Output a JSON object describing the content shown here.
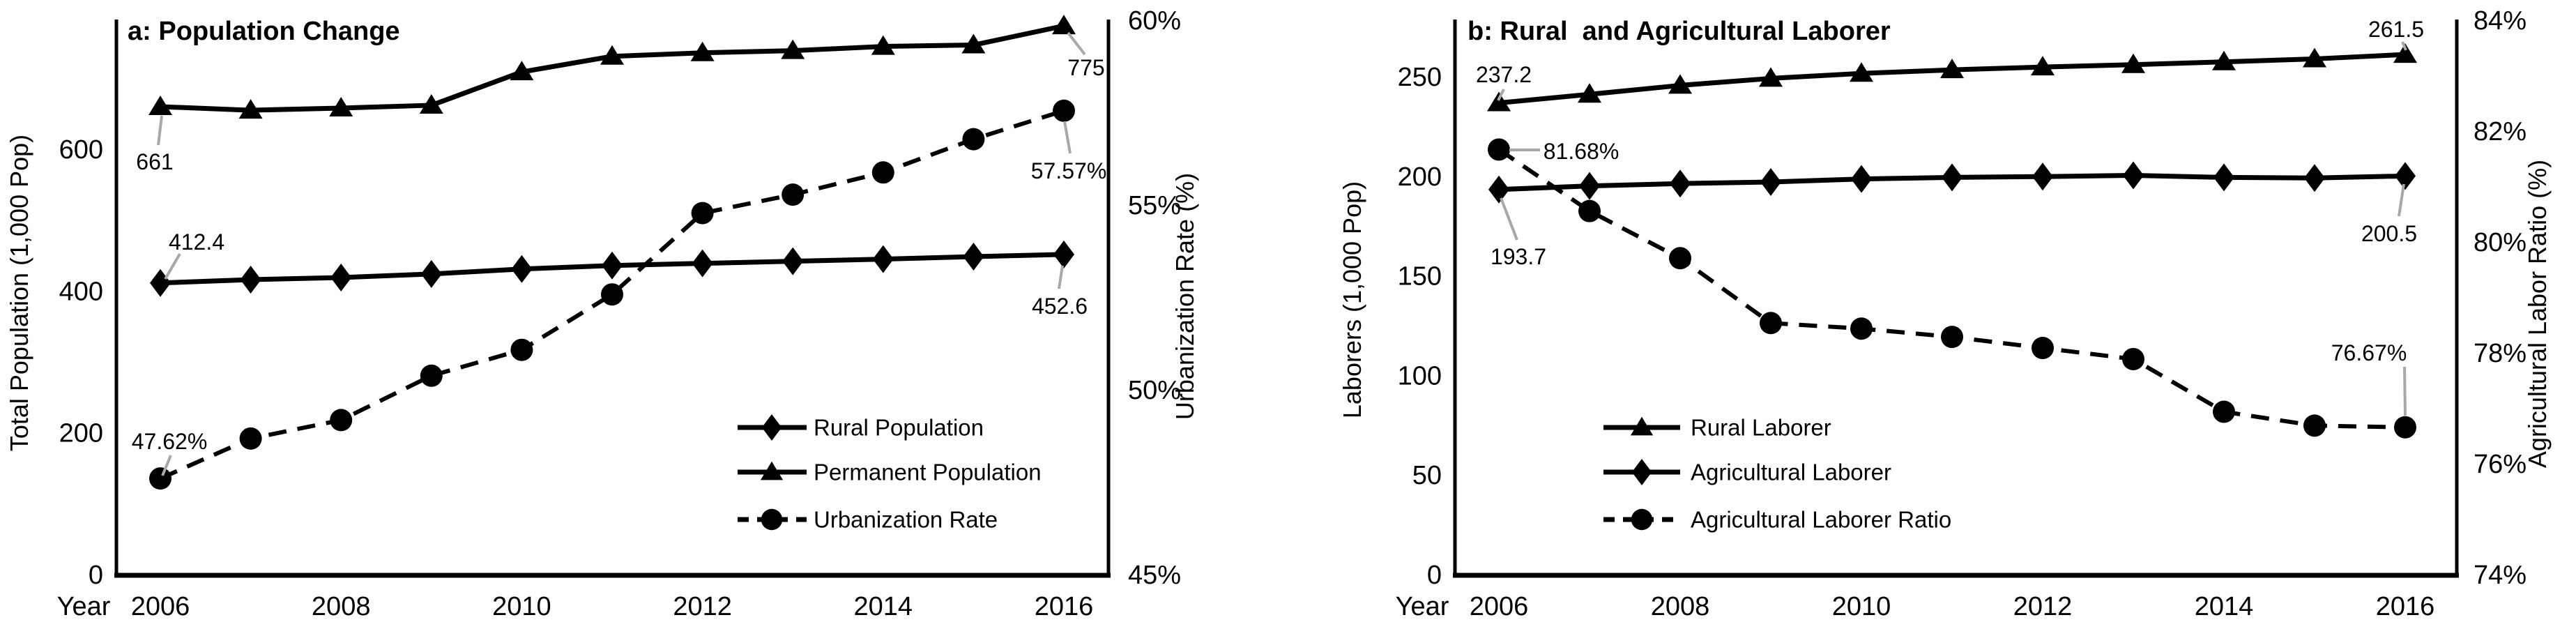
{
  "page": {
    "background": "#ffffff"
  },
  "colors": {
    "series": "#000000",
    "leader": "#a8a8a8",
    "text": "#000000"
  },
  "chart_data": [
    {
      "type": "line",
      "panel": "a",
      "title": "a: Population Change",
      "xlabel": "Year",
      "grid": false,
      "legend_position": "inside-lower-right",
      "x": [
        2006,
        2007,
        2008,
        2009,
        2010,
        2011,
        2012,
        2013,
        2014,
        2015,
        2016
      ],
      "x_tick_labels": [
        "2006",
        "2008",
        "2010",
        "2012",
        "2014",
        "2016"
      ],
      "x_tick_values": [
        2006,
        2008,
        2010,
        2012,
        2014,
        2016
      ],
      "left_axis": {
        "label": "Total Population (1,000 Pop)",
        "tick_labels": [
          "0",
          "200",
          "400",
          "600"
        ],
        "tick_values": [
          0,
          200,
          400,
          600
        ],
        "range": [
          0,
          780
        ]
      },
      "right_axis": {
        "label": "Urbanization Rate (%)",
        "tick_labels": [
          "45%",
          "50%",
          "55%",
          "60%"
        ],
        "tick_values": [
          45,
          50,
          55,
          60
        ],
        "range": [
          45,
          60
        ]
      },
      "series": [
        {
          "name": "Rural Population",
          "axis": "left",
          "marker": "diamond",
          "line": "solid",
          "values": [
            412.4,
            417,
            420,
            425,
            432,
            437,
            440,
            443,
            446,
            449.5,
            452.6
          ]
        },
        {
          "name": "Permanent Population",
          "axis": "left",
          "marker": "triangle",
          "line": "solid",
          "values": [
            661,
            656,
            659,
            663,
            710,
            732,
            737,
            740,
            746,
            748,
            775
          ]
        },
        {
          "name": "Urbanization Rate",
          "axis": "right",
          "marker": "circle",
          "line": "dashed",
          "values": [
            47.62,
            48.7,
            49.2,
            50.4,
            51.1,
            52.6,
            54.8,
            55.3,
            55.9,
            56.8,
            57.57
          ]
        }
      ],
      "legend_entries": [
        "Rural Population",
        "Permanent Population",
        "Urbanization Rate"
      ],
      "point_labels": [
        {
          "text": "661",
          "series": "Permanent Population",
          "year": 2006
        },
        {
          "text": "412.4",
          "series": "Rural Population",
          "year": 2006
        },
        {
          "text": "47.62%",
          "series": "Urbanization Rate",
          "year": 2006
        },
        {
          "text": "775",
          "series": "Permanent Population",
          "year": 2016
        },
        {
          "text": "452.6",
          "series": "Rural Population",
          "year": 2016
        },
        {
          "text": "57.57%",
          "series": "Urbanization Rate",
          "year": 2016
        }
      ]
    },
    {
      "type": "line",
      "panel": "b",
      "title": "b: Rural  and Agricultural Laborer",
      "xlabel": "Year",
      "grid": false,
      "legend_position": "inside-lower-left",
      "x": [
        2006,
        2007,
        2008,
        2009,
        2010,
        2011,
        2012,
        2013,
        2014,
        2015,
        2016
      ],
      "x_tick_labels": [
        "2006",
        "2008",
        "2010",
        "2012",
        "2014",
        "2016"
      ],
      "x_tick_values": [
        2006,
        2008,
        2010,
        2012,
        2014,
        2016
      ],
      "left_axis": {
        "label": "Laborers (1,000 Pop)",
        "tick_labels": [
          "0",
          "50",
          "100",
          "150",
          "200",
          "250"
        ],
        "tick_values": [
          0,
          50,
          100,
          150,
          200,
          250
        ],
        "range": [
          0,
          278
        ]
      },
      "right_axis": {
        "label": "Agricultural Labor Ratio (%)",
        "tick_labels": [
          "74%",
          "76%",
          "78%",
          "80%",
          "82%",
          "84%"
        ],
        "tick_values": [
          74,
          76,
          78,
          80,
          82,
          84
        ],
        "range": [
          74,
          84
        ]
      },
      "series": [
        {
          "name": "Rural Laborer",
          "axis": "left",
          "marker": "triangle",
          "line": "solid",
          "values": [
            237.2,
            241.5,
            246,
            249.5,
            252,
            253.8,
            255.2,
            256.4,
            257.8,
            259.3,
            261.5
          ]
        },
        {
          "name": "Agricultural Laborer",
          "axis": "left",
          "marker": "diamond",
          "line": "solid",
          "values": [
            193.7,
            195.5,
            196.7,
            197.5,
            199,
            199.8,
            200.2,
            200.8,
            199.8,
            199.5,
            200.5
          ]
        },
        {
          "name": "Agricultural Laborer Ratio",
          "axis": "right",
          "marker": "circle",
          "line": "dashed",
          "values": [
            81.68,
            80.57,
            79.72,
            78.55,
            78.45,
            78.3,
            78.1,
            77.9,
            76.95,
            76.7,
            76.67
          ]
        }
      ],
      "legend_entries": [
        "Rural Laborer",
        "Agricultural Laborer",
        "Agricultural Laborer Ratio"
      ],
      "point_labels": [
        {
          "text": "237.2",
          "series": "Rural Laborer",
          "year": 2006
        },
        {
          "text": "193.7",
          "series": "Agricultural Laborer",
          "year": 2006
        },
        {
          "text": "81.68%",
          "series": "Agricultural Laborer Ratio",
          "year": 2006
        },
        {
          "text": "261.5",
          "series": "Rural Laborer",
          "year": 2016
        },
        {
          "text": "200.5",
          "series": "Agricultural Laborer",
          "year": 2016
        },
        {
          "text": "76.67%",
          "series": "Agricultural Laborer Ratio",
          "year": 2016
        }
      ]
    }
  ]
}
